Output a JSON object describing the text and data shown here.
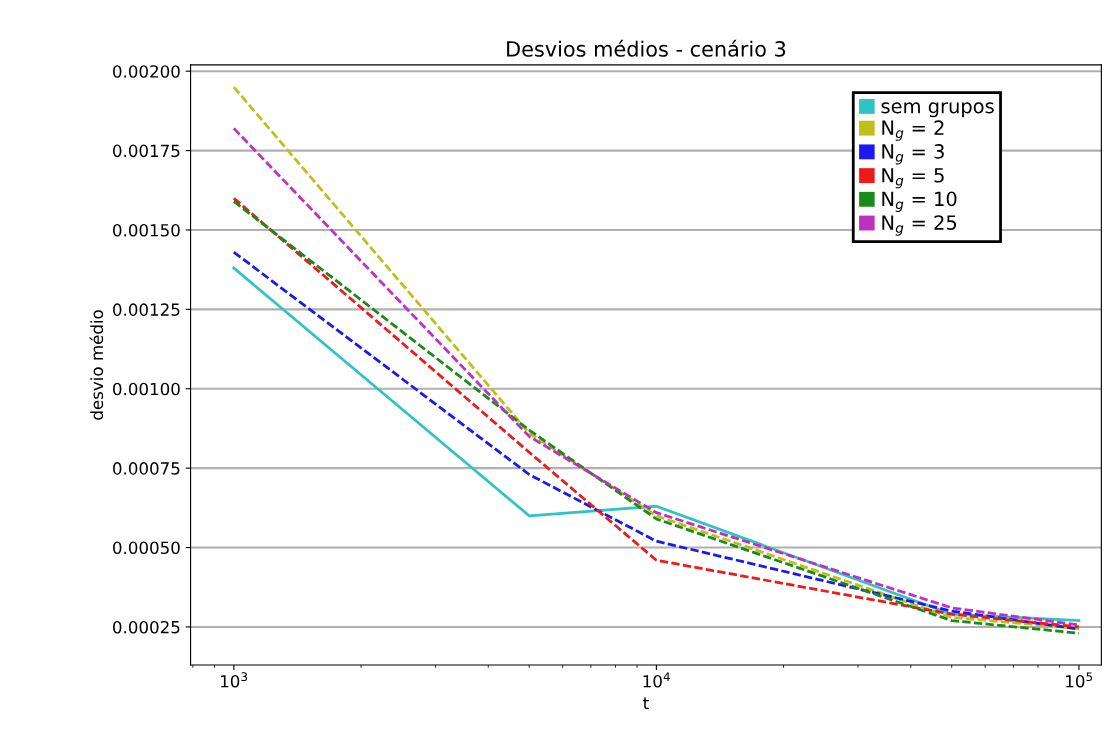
{
  "chart_data": {
    "type": "line",
    "title": "Desvios médios - cenário 3",
    "xlabel": "t",
    "ylabel": "desvio médio",
    "x": [
      1000,
      5000,
      10000,
      50000,
      100000
    ],
    "series": [
      {
        "name": "sem grupos",
        "color": "#2ec4c4",
        "line_style": "solid",
        "values": [
          0.00138,
          0.0006,
          0.00063,
          0.00029,
          0.00027
        ]
      },
      {
        "name": "N$_{g}$ = 2",
        "color": "#bfbf1a",
        "line_style": "dashed",
        "values": [
          0.00195,
          0.00086,
          0.0006,
          0.00028,
          0.000245
        ]
      },
      {
        "name": "N$_{g}$ = 3",
        "color": "#1a1aee",
        "line_style": "dashed",
        "values": [
          0.00143,
          0.00073,
          0.00052,
          0.0003,
          0.000243
        ]
      },
      {
        "name": "N$_{g}$ = 5",
        "color": "#ee1a1a",
        "line_style": "dashed",
        "values": [
          0.0016,
          0.0008,
          0.00046,
          0.00029,
          0.00025
        ]
      },
      {
        "name": "N$_{g}$ = 10",
        "color": "#1a8a1a",
        "line_style": "dashed",
        "values": [
          0.00159,
          0.00087,
          0.00059,
          0.00027,
          0.00023
        ]
      },
      {
        "name": "N$_{g}$ = 25",
        "color": "#c030c0",
        "line_style": "dashed",
        "values": [
          0.00182,
          0.00085,
          0.00061,
          0.00031,
          0.000256
        ]
      }
    ],
    "log": "x",
    "xlim": [
      790,
      113000
    ],
    "ylim": [
      0.00013,
      0.00202
    ],
    "xticks": [
      {
        "value": 1000,
        "label": "10$^{3}$"
      },
      {
        "value": 10000,
        "label": "10$^{4}$"
      },
      {
        "value": 100000,
        "label": "10$^{5}$"
      }
    ],
    "yticks": [
      {
        "value": 0.00025,
        "label": "0.00025"
      },
      {
        "value": 0.0005,
        "label": "0.00050"
      },
      {
        "value": 0.00075,
        "label": "0.00075"
      },
      {
        "value": 0.001,
        "label": "0.00100"
      },
      {
        "value": 0.00125,
        "label": "0.00125"
      },
      {
        "value": 0.0015,
        "label": "0.00150"
      },
      {
        "value": 0.00175,
        "label": "0.00175"
      },
      {
        "value": 0.002,
        "label": "0.00200"
      }
    ],
    "grid": "y",
    "legend": "top right",
    "marker": "none"
  }
}
